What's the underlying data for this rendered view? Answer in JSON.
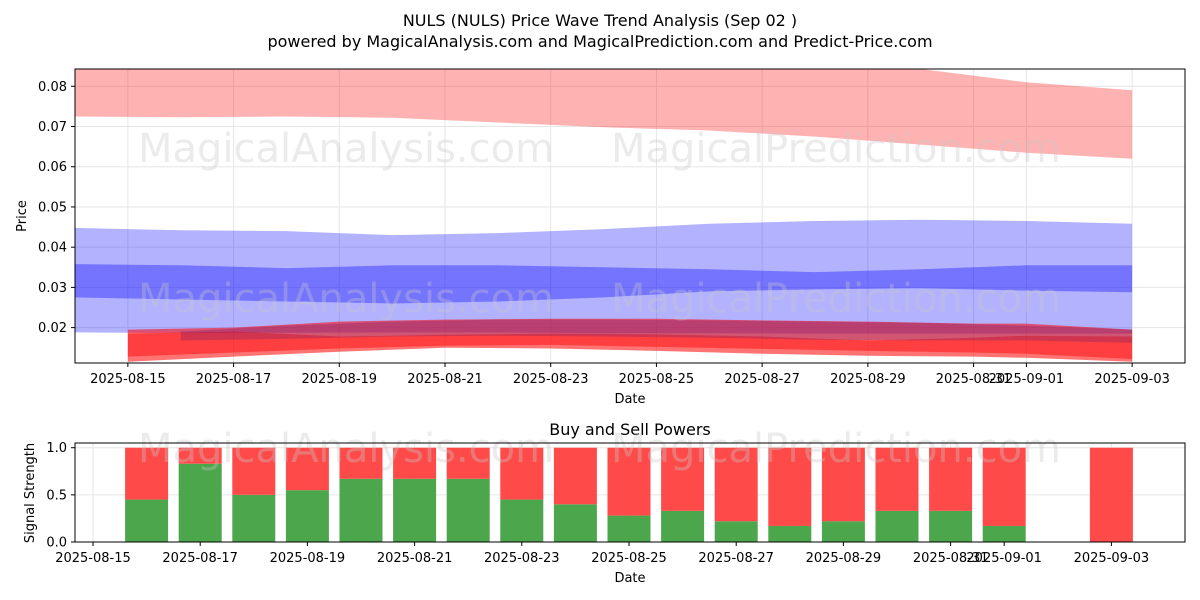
{
  "header": {
    "title": "NULS (NULS) Price Wave Trend Analysis (Sep 02 )",
    "subtitle": "powered by MagicalAnalysis.com and MagicalPrediction.com and Predict-Price.com"
  },
  "watermarks": [
    "MagicalAnalysis.com",
    "MagicalPrediction.com"
  ],
  "colors": {
    "red_band": "#ff0000",
    "blue_band": "#0000ff",
    "buy": "#4ca64c",
    "sell": "#ff4a4a"
  },
  "chart_data": [
    {
      "type": "area",
      "title": "",
      "xlabel": "Date",
      "ylabel": "Price",
      "ylim": [
        0.0112,
        0.0843
      ],
      "xlim": [
        "2025-08-14",
        "2025-09-04"
      ],
      "x_ticks": [
        "2025-08-15",
        "2025-08-17",
        "2025-08-19",
        "2025-08-21",
        "2025-08-23",
        "2025-08-25",
        "2025-08-27",
        "2025-08-29",
        "2025-08-31",
        "2025-09-01",
        "2025-09-03"
      ],
      "x_tick_labels": [
        "2025-08-15",
        "2025-08-17",
        "2025-08-19",
        "2025-08-21",
        "2025-08-23",
        "2025-08-25",
        "2025-08-27",
        "2025-08-29",
        "2025-08-31",
        "2025-09-01",
        "2025-09-03"
      ],
      "y_ticks": [
        0.02,
        0.03,
        0.04,
        0.05,
        0.06,
        0.07,
        0.08
      ],
      "y_tick_labels": [
        "0.02",
        "0.03",
        "0.04",
        "0.05",
        "0.06",
        "0.07",
        "0.08"
      ],
      "grid": true,
      "bands": [
        {
          "color": "red",
          "opacity": 0.3,
          "x": [
            "2025-08-14",
            "2025-08-16",
            "2025-08-18",
            "2025-08-20",
            "2025-08-22",
            "2025-08-24",
            "2025-08-26",
            "2025-08-28",
            "2025-08-30",
            "2025-09-01",
            "2025-09-03"
          ],
          "upper": [
            0.087,
            0.087,
            0.087,
            0.087,
            0.087,
            0.087,
            0.087,
            0.087,
            0.086,
            0.081,
            0.079
          ],
          "lower": [
            0.0725,
            0.0723,
            0.0725,
            0.0722,
            0.071,
            0.0698,
            0.069,
            0.0675,
            0.0655,
            0.0635,
            0.062
          ]
        },
        {
          "color": "blue",
          "opacity": 0.3,
          "x": [
            "2025-08-14",
            "2025-08-16",
            "2025-08-18",
            "2025-08-20",
            "2025-08-22",
            "2025-08-24",
            "2025-08-26",
            "2025-08-28",
            "2025-08-30",
            "2025-09-01",
            "2025-09-03"
          ],
          "upper": [
            0.0448,
            0.0442,
            0.044,
            0.043,
            0.0435,
            0.0445,
            0.0458,
            0.0465,
            0.0468,
            0.0465,
            0.0458
          ],
          "lower": [
            0.0188,
            0.0186,
            0.0187,
            0.0188,
            0.0188,
            0.0186,
            0.0186,
            0.0185,
            0.0185,
            0.0185,
            0.0185
          ]
        },
        {
          "color": "blue",
          "opacity": 0.35,
          "x": [
            "2025-08-14",
            "2025-08-16",
            "2025-08-18",
            "2025-08-20",
            "2025-08-22",
            "2025-08-24",
            "2025-08-26",
            "2025-08-28",
            "2025-08-30",
            "2025-09-01",
            "2025-09-03"
          ],
          "upper": [
            0.0358,
            0.0355,
            0.0348,
            0.0355,
            0.0355,
            0.035,
            0.0345,
            0.0338,
            0.0345,
            0.0355,
            0.0355
          ],
          "lower": [
            0.0275,
            0.027,
            0.0265,
            0.026,
            0.0265,
            0.0275,
            0.029,
            0.0295,
            0.0298,
            0.0292,
            0.0288
          ]
        },
        {
          "color": "red",
          "opacity": 0.55,
          "x": [
            "2025-08-15",
            "2025-08-17",
            "2025-08-19",
            "2025-08-21",
            "2025-08-23",
            "2025-08-25",
            "2025-08-27",
            "2025-08-29",
            "2025-08-31",
            "2025-09-01",
            "2025-09-03"
          ],
          "upper": [
            0.0195,
            0.02,
            0.0215,
            0.022,
            0.0222,
            0.0222,
            0.0218,
            0.0215,
            0.021,
            0.021,
            0.0195
          ],
          "lower": [
            0.0115,
            0.0128,
            0.014,
            0.015,
            0.0148,
            0.0142,
            0.0135,
            0.013,
            0.0128,
            0.0125,
            0.0115
          ]
        },
        {
          "color": "red",
          "opacity": 0.45,
          "x": [
            "2025-08-15",
            "2025-08-17",
            "2025-08-19",
            "2025-08-21",
            "2025-08-23",
            "2025-08-25",
            "2025-08-27",
            "2025-08-29",
            "2025-08-31",
            "2025-09-01",
            "2025-09-03"
          ],
          "upper": [
            0.0185,
            0.019,
            0.0178,
            0.0182,
            0.0185,
            0.0183,
            0.0178,
            0.0168,
            0.0175,
            0.018,
            0.0178
          ],
          "lower": [
            0.0128,
            0.0138,
            0.0148,
            0.0155,
            0.0157,
            0.0152,
            0.0147,
            0.0142,
            0.0138,
            0.0135,
            0.0122
          ]
        },
        {
          "color": "purple",
          "opacity": 0.35,
          "x": [
            "2025-08-16",
            "2025-08-18",
            "2025-08-20",
            "2025-08-22",
            "2025-08-24",
            "2025-08-26",
            "2025-08-28",
            "2025-08-30",
            "2025-09-01",
            "2025-09-03"
          ],
          "upper": [
            0.019,
            0.0205,
            0.0215,
            0.022,
            0.022,
            0.0218,
            0.0215,
            0.0212,
            0.0205,
            0.0195
          ],
          "lower": [
            0.0168,
            0.0172,
            0.0178,
            0.018,
            0.0178,
            0.0175,
            0.017,
            0.0168,
            0.0168,
            0.0162
          ]
        }
      ]
    },
    {
      "type": "bar",
      "title": "Buy and Sell Powers",
      "xlabel": "Date",
      "ylabel": "Signal Strength",
      "ylim": [
        0,
        1.05
      ],
      "xlim": [
        "2025-08-15",
        "2025-09-04"
      ],
      "x_ticks": [
        "2025-08-15",
        "2025-08-17",
        "2025-08-19",
        "2025-08-21",
        "2025-08-23",
        "2025-08-25",
        "2025-08-27",
        "2025-08-29",
        "2025-08-31",
        "2025-09-01",
        "2025-09-03"
      ],
      "x_tick_labels": [
        "2025-08-15",
        "2025-08-17",
        "2025-08-19",
        "2025-08-21",
        "2025-08-23",
        "2025-08-25",
        "2025-08-27",
        "2025-08-29",
        "2025-08-31",
        "2025-09-01",
        "2025-09-03"
      ],
      "y_ticks": [
        0.0,
        0.5,
        1.0
      ],
      "y_tick_labels": [
        "0.0",
        "0.5",
        "1.0"
      ],
      "grid": true,
      "categories": [
        "2025-08-16",
        "2025-08-17",
        "2025-08-18",
        "2025-08-19",
        "2025-08-20",
        "2025-08-21",
        "2025-08-22",
        "2025-08-23",
        "2025-08-24",
        "2025-08-25",
        "2025-08-26",
        "2025-08-27",
        "2025-08-28",
        "2025-08-29",
        "2025-08-30",
        "2025-08-31",
        "2025-09-01",
        "2025-09-03"
      ],
      "series": [
        {
          "name": "",
          "color": "buy",
          "values": [
            0.45,
            0.83,
            0.5,
            0.55,
            0.67,
            0.67,
            0.67,
            0.45,
            0.4,
            0.28,
            0.33,
            0.22,
            0.17,
            0.22,
            0.33,
            0.33,
            0.17,
            0.0
          ]
        },
        {
          "name": "",
          "color": "sell",
          "values": [
            0.55,
            0.17,
            0.5,
            0.45,
            0.33,
            0.33,
            0.33,
            0.55,
            0.6,
            0.72,
            0.67,
            0.78,
            0.83,
            0.78,
            0.67,
            0.67,
            0.83,
            1.0
          ]
        }
      ]
    }
  ]
}
